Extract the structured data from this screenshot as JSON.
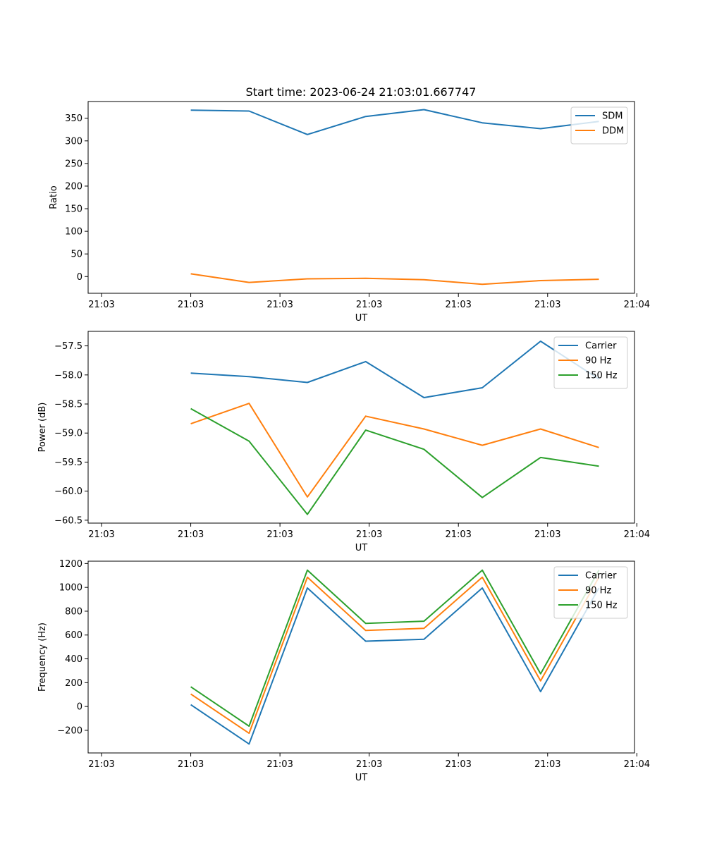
{
  "figure": {
    "title": "Start time: 2023-06-24 21:03:01.667747"
  },
  "colors": {
    "blue": "#1f77b4",
    "orange": "#ff7f0e",
    "green": "#2ca02c"
  },
  "chart_data": [
    {
      "type": "line",
      "title": "Start time: 2023-06-24 21:03:01.667747",
      "xlabel": "UT",
      "ylabel": "Ratio",
      "x": [
        1,
        2,
        3,
        4,
        5,
        6,
        7,
        8
      ],
      "xlim": [
        -0.76,
        8.61
      ],
      "xticks": [
        -0.53,
        1.0,
        2.53,
        4.06,
        5.59,
        7.12,
        8.65
      ],
      "xtick_labels": [
        "21:03",
        "21:03",
        "21:03",
        "21:03",
        "21:03",
        "21:03",
        "21:04"
      ],
      "ylim": [
        -37,
        387
      ],
      "yticks": [
        0,
        50,
        100,
        150,
        200,
        250,
        300,
        350
      ],
      "ytick_labels": [
        "0",
        "50",
        "100",
        "150",
        "200",
        "250",
        "300",
        "350"
      ],
      "legend": "top-right",
      "grid": false,
      "series": [
        {
          "name": "SDM",
          "color": "#1f77b4",
          "values": [
            368,
            366,
            314,
            354,
            369,
            340,
            327,
            343
          ]
        },
        {
          "name": "DDM",
          "color": "#ff7f0e",
          "values": [
            6,
            -13,
            -5,
            -4,
            -7,
            -17,
            -9,
            -6
          ]
        }
      ]
    },
    {
      "type": "line",
      "xlabel": "UT",
      "ylabel": "Power (dB)",
      "x": [
        1,
        2,
        3,
        4,
        5,
        6,
        7,
        8
      ],
      "xlim": [
        -0.76,
        8.61
      ],
      "xticks": [
        -0.53,
        1.0,
        2.53,
        4.06,
        5.59,
        7.12,
        8.65
      ],
      "xtick_labels": [
        "21:03",
        "21:03",
        "21:03",
        "21:03",
        "21:03",
        "21:03",
        "21:04"
      ],
      "ylim": [
        -60.55,
        -57.25
      ],
      "yticks": [
        -60.5,
        -60.0,
        -59.5,
        -59.0,
        -58.5,
        -58.0,
        -57.5
      ],
      "ytick_labels": [
        "−60.5",
        "−60.0",
        "−59.5",
        "−59.0",
        "−58.5",
        "−58.0",
        "−57.5"
      ],
      "legend": "top-right",
      "grid": false,
      "series": [
        {
          "name": "Carrier",
          "color": "#1f77b4",
          "values": [
            -57.97,
            -58.03,
            -58.13,
            -57.77,
            -58.39,
            -58.22,
            -57.42,
            -58.07
          ]
        },
        {
          "name": "90 Hz",
          "color": "#ff7f0e",
          "values": [
            -58.84,
            -58.49,
            -60.1,
            -58.71,
            -58.93,
            -59.21,
            -58.93,
            -59.25
          ]
        },
        {
          "name": "150 Hz",
          "color": "#2ca02c",
          "values": [
            -58.58,
            -59.14,
            -60.4,
            -58.95,
            -59.28,
            -60.11,
            -59.42,
            -59.57
          ]
        }
      ]
    },
    {
      "type": "line",
      "xlabel": "UT",
      "ylabel": "Frequency (Hz)",
      "x": [
        1,
        2,
        3,
        4,
        5,
        6,
        7,
        8
      ],
      "xlim": [
        -0.76,
        8.61
      ],
      "xticks": [
        -0.53,
        1.0,
        2.53,
        4.06,
        5.59,
        7.12,
        8.65
      ],
      "xtick_labels": [
        "21:03",
        "21:03",
        "21:03",
        "21:03",
        "21:03",
        "21:03",
        "21:04"
      ],
      "ylim": [
        -390,
        1220
      ],
      "yticks": [
        -200,
        0,
        200,
        400,
        600,
        800,
        1000,
        1200
      ],
      "ytick_labels": [
        "−200",
        "0",
        "200",
        "400",
        "600",
        "800",
        "1000",
        "1200"
      ],
      "legend": "top-right",
      "grid": false,
      "series": [
        {
          "name": "Carrier",
          "color": "#1f77b4",
          "values": [
            15,
            -315,
            995,
            548,
            565,
            995,
            125,
            995
          ]
        },
        {
          "name": "90 Hz",
          "color": "#ff7f0e",
          "values": [
            105,
            -225,
            1085,
            638,
            656,
            1085,
            215,
            1085
          ]
        },
        {
          "name": "150 Hz",
          "color": "#2ca02c",
          "values": [
            165,
            -165,
            1145,
            698,
            716,
            1145,
            275,
            1145
          ]
        }
      ]
    }
  ]
}
